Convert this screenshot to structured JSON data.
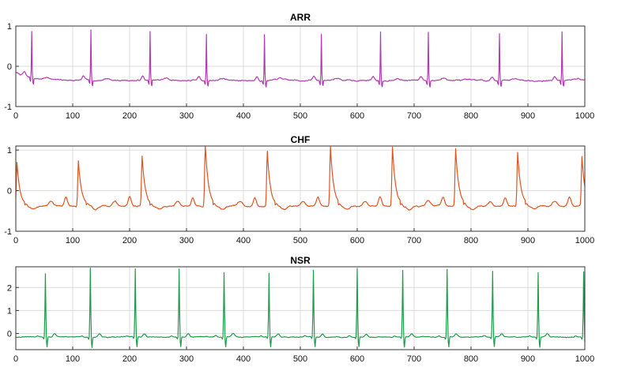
{
  "chart_data": [
    {
      "type": "line",
      "title": "ARR",
      "xlabel": "",
      "ylabel": "",
      "xlim": [
        0,
        1000
      ],
      "ylim": [
        -1,
        1
      ],
      "xticks": [
        0,
        100,
        200,
        300,
        400,
        500,
        600,
        700,
        800,
        900,
        1000
      ],
      "yticks": [
        -1,
        0,
        1
      ],
      "grid": true,
      "series": [
        {
          "color": "#b23bb0",
          "baseline_start": -0.15,
          "baseline": -0.35,
          "peaks": [
            {
              "x": 28,
              "y": 0.8
            },
            {
              "x": 132,
              "y": 0.88
            },
            {
              "x": 236,
              "y": 0.86
            },
            {
              "x": 335,
              "y": 0.8
            },
            {
              "x": 437,
              "y": 0.8
            },
            {
              "x": 537,
              "y": 0.8
            },
            {
              "x": 641,
              "y": 0.86
            },
            {
              "x": 725,
              "y": 0.86
            },
            {
              "x": 850,
              "y": 0.82
            },
            {
              "x": 960,
              "y": 0.86
            }
          ]
        }
      ]
    },
    {
      "type": "line",
      "title": "CHF",
      "xlabel": "",
      "ylabel": "",
      "xlim": [
        0,
        1000
      ],
      "ylim": [
        -1,
        1.1
      ],
      "xticks": [
        0,
        100,
        200,
        300,
        400,
        500,
        600,
        700,
        800,
        900,
        1000
      ],
      "yticks": [
        -1,
        0,
        1
      ],
      "grid": true,
      "series": [
        {
          "color": "#e0541f",
          "baseline": -0.38,
          "peaks": [
            {
              "x": 2,
              "y": 0.7
            },
            {
              "x": 110,
              "y": 0.75
            },
            {
              "x": 222,
              "y": 0.85
            },
            {
              "x": 333,
              "y": 1.12
            },
            {
              "x": 442,
              "y": 0.98
            },
            {
              "x": 553,
              "y": 1.08
            },
            {
              "x": 662,
              "y": 1.08
            },
            {
              "x": 773,
              "y": 1.02
            },
            {
              "x": 882,
              "y": 0.95
            },
            {
              "x": 995,
              "y": 0.85
            }
          ]
        }
      ]
    },
    {
      "type": "line",
      "title": "NSR",
      "xlabel": "",
      "ylabel": "",
      "xlim": [
        0,
        1000
      ],
      "ylim": [
        -0.7,
        2.9
      ],
      "xticks": [
        0,
        100,
        200,
        300,
        400,
        500,
        600,
        700,
        800,
        900,
        1000
      ],
      "yticks": [
        0,
        1,
        2
      ],
      "grid": true,
      "series": [
        {
          "color": "#1f9a4a",
          "baseline": -0.15,
          "peaks": [
            {
              "x": 52,
              "y": 2.6
            },
            {
              "x": 131,
              "y": 2.85
            },
            {
              "x": 210,
              "y": 2.8
            },
            {
              "x": 287,
              "y": 2.8
            },
            {
              "x": 366,
              "y": 2.65
            },
            {
              "x": 445,
              "y": 2.6
            },
            {
              "x": 523,
              "y": 2.75
            },
            {
              "x": 600,
              "y": 2.82
            },
            {
              "x": 680,
              "y": 2.75
            },
            {
              "x": 758,
              "y": 2.78
            },
            {
              "x": 838,
              "y": 2.7
            },
            {
              "x": 918,
              "y": 2.65
            },
            {
              "x": 998,
              "y": 2.7
            }
          ]
        }
      ]
    }
  ]
}
